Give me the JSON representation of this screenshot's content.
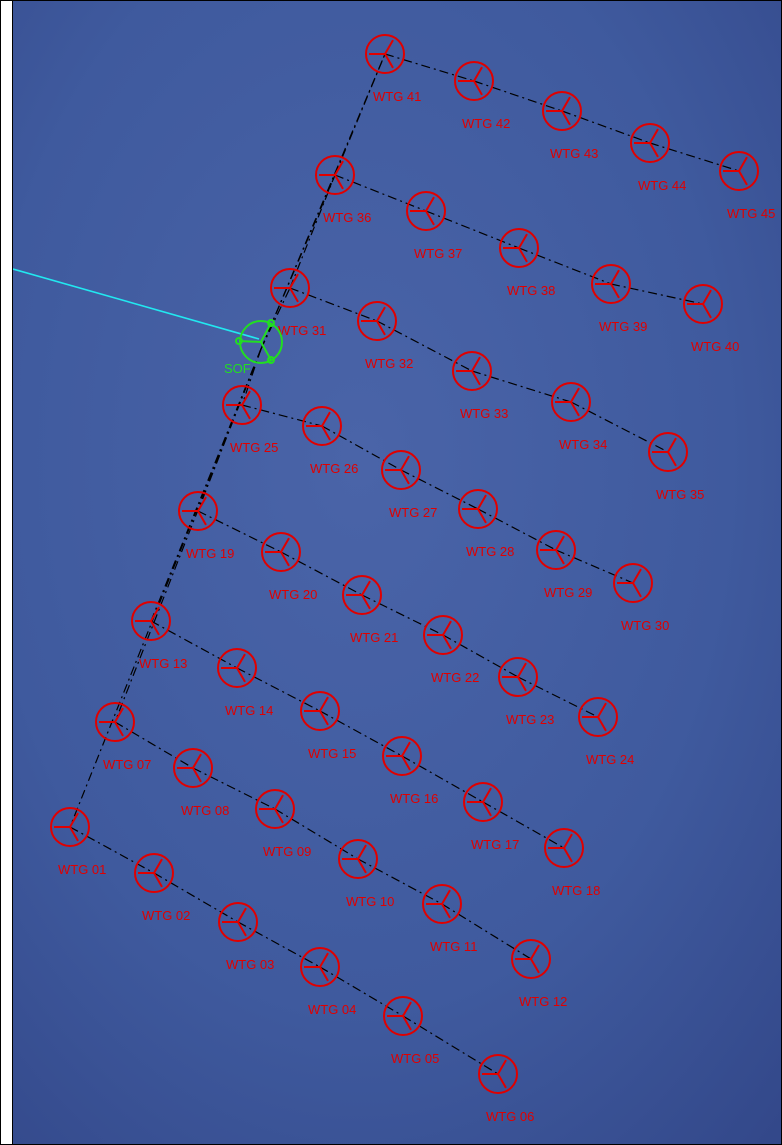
{
  "colors": {
    "sea": "#3f5a9e",
    "turbine": "#e00000",
    "substation": "#22dd22",
    "export_cable": "#22e8f0",
    "array_cable": "#000000"
  },
  "substation": {
    "label": "SOF"
  },
  "turbines": [
    {
      "label": "WTG 01",
      "cluster": "row1"
    },
    {
      "label": "WTG 02",
      "cluster": "row1"
    },
    {
      "label": "WTG 03",
      "cluster": "row1"
    },
    {
      "label": "WTG 04",
      "cluster": "row1"
    },
    {
      "label": "WTG 05",
      "cluster": "row1"
    },
    {
      "label": "WTG 06",
      "cluster": "row1"
    },
    {
      "label": "WTG 07",
      "cluster": "row2"
    },
    {
      "label": "WTG 08",
      "cluster": "row2"
    },
    {
      "label": "WTG 09",
      "cluster": "row2"
    },
    {
      "label": "WTG 10",
      "cluster": "row2"
    },
    {
      "label": "WTG 11",
      "cluster": "row2"
    },
    {
      "label": "WTG 12",
      "cluster": "row2"
    },
    {
      "label": "WTG 13",
      "cluster": "row3"
    },
    {
      "label": "WTG 14",
      "cluster": "row3"
    },
    {
      "label": "WTG 15",
      "cluster": "row3"
    },
    {
      "label": "WTG 16",
      "cluster": "row3"
    },
    {
      "label": "WTG 17",
      "cluster": "row3"
    },
    {
      "label": "WTG 18",
      "cluster": "row3"
    },
    {
      "label": "WTG 19",
      "cluster": "row4"
    },
    {
      "label": "WTG 20",
      "cluster": "row4"
    },
    {
      "label": "WTG 21",
      "cluster": "row4"
    },
    {
      "label": "WTG 22",
      "cluster": "row4"
    },
    {
      "label": "WTG 23",
      "cluster": "row4"
    },
    {
      "label": "WTG 24",
      "cluster": "row4"
    },
    {
      "label": "WTG 25",
      "cluster": "row5"
    },
    {
      "label": "WTG 26",
      "cluster": "row5"
    },
    {
      "label": "WTG 27",
      "cluster": "row5"
    },
    {
      "label": "WTG 28",
      "cluster": "row5"
    },
    {
      "label": "WTG 29",
      "cluster": "row5"
    },
    {
      "label": "WTG 30",
      "cluster": "row5"
    },
    {
      "label": "WTG 31",
      "cluster": "row6"
    },
    {
      "label": "WTG 32",
      "cluster": "row6"
    },
    {
      "label": "WTG 33",
      "cluster": "row6"
    },
    {
      "label": "WTG 34",
      "cluster": "row6"
    },
    {
      "label": "WTG 35",
      "cluster": "row6"
    },
    {
      "label": "WTG 36",
      "cluster": "row7"
    },
    {
      "label": "WTG 37",
      "cluster": "row7"
    },
    {
      "label": "WTG 38",
      "cluster": "row7"
    },
    {
      "label": "WTG 39",
      "cluster": "row7"
    },
    {
      "label": "WTG 40",
      "cluster": "row7"
    },
    {
      "label": "WTG 41",
      "cluster": "row8"
    },
    {
      "label": "WTG 42",
      "cluster": "row8"
    },
    {
      "label": "WTG 43",
      "cluster": "row8"
    },
    {
      "label": "WTG 44",
      "cluster": "row8"
    },
    {
      "label": "WTG 45",
      "cluster": "row8"
    }
  ]
}
